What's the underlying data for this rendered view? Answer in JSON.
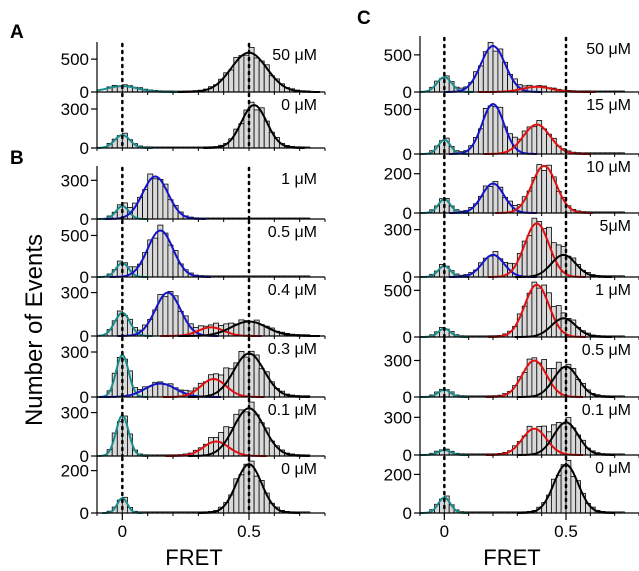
{
  "figure": {
    "y_axis_label": "Number of Events",
    "x_axis_label": "FRET",
    "x_ticks": [
      "0",
      "0.5"
    ],
    "fit_colors": {
      "zero": "#1a8c8c",
      "low": "#1414c8",
      "mid": "#e01010",
      "high": "#000000"
    },
    "bar_fill": "#d9d9d9",
    "dotted_reference_lines": [
      0,
      0.5
    ]
  },
  "chart_data": [
    {
      "type": "bar",
      "panel": "A",
      "xlabel": "",
      "ylabel": "Number of Events",
      "xlim": [
        -0.1,
        0.8
      ],
      "panels": [
        {
          "label": "50 μM",
          "ylim": [
            0,
            700
          ],
          "ticks": [
            0,
            500
          ],
          "peaks": [
            {
              "fit": "zero",
              "c": 0.0,
              "s": 0.06,
              "a": 90
            },
            {
              "fit": "high",
              "c": 0.5,
              "s": 0.07,
              "a": 600
            }
          ]
        },
        {
          "label": "0 μM",
          "ylim": [
            0,
            400
          ],
          "ticks": [
            0,
            300
          ],
          "peaks": [
            {
              "fit": "zero",
              "c": 0.0,
              "s": 0.03,
              "a": 100
            },
            {
              "fit": "high",
              "c": 0.52,
              "s": 0.05,
              "a": 330
            }
          ]
        }
      ]
    },
    {
      "type": "bar",
      "panel": "B",
      "xlabel": "FRET",
      "ylabel": "Number of Events",
      "xlim": [
        -0.1,
        0.8
      ],
      "x_ticks": [
        0,
        0.5
      ],
      "panels": [
        {
          "label": "1 μM",
          "ylim": [
            0,
            380
          ],
          "ticks": [
            0,
            300
          ],
          "peaks": [
            {
              "fit": "zero",
              "c": 0.0,
              "s": 0.025,
              "a": 100
            },
            {
              "fit": "low",
              "c": 0.13,
              "s": 0.05,
              "a": 330
            }
          ]
        },
        {
          "label": "0.5 μM",
          "ylim": [
            0,
            650
          ],
          "ticks": [
            0,
            500
          ],
          "peaks": [
            {
              "fit": "zero",
              "c": 0.0,
              "s": 0.025,
              "a": 170
            },
            {
              "fit": "low",
              "c": 0.15,
              "s": 0.05,
              "a": 560
            }
          ]
        },
        {
          "label": "0.4 μM",
          "ylim": [
            0,
            380
          ],
          "ticks": [
            0,
            300
          ],
          "peaks": [
            {
              "fit": "zero",
              "c": 0.0,
              "s": 0.03,
              "a": 160
            },
            {
              "fit": "low",
              "c": 0.18,
              "s": 0.05,
              "a": 300
            },
            {
              "fit": "mid",
              "c": 0.35,
              "s": 0.05,
              "a": 60
            },
            {
              "fit": "high",
              "c": 0.5,
              "s": 0.07,
              "a": 100
            }
          ]
        },
        {
          "label": "0.3 μM",
          "ylim": [
            0,
            380
          ],
          "ticks": [
            0,
            300
          ],
          "peaks": [
            {
              "fit": "zero",
              "c": 0.0,
              "s": 0.025,
              "a": 280
            },
            {
              "fit": "low",
              "c": 0.15,
              "s": 0.06,
              "a": 90
            },
            {
              "fit": "mid",
              "c": 0.36,
              "s": 0.05,
              "a": 120
            },
            {
              "fit": "high",
              "c": 0.5,
              "s": 0.06,
              "a": 290
            }
          ]
        },
        {
          "label": "0.1 μM",
          "ylim": [
            0,
            380
          ],
          "ticks": [
            0,
            300
          ],
          "peaks": [
            {
              "fit": "zero",
              "c": 0.0,
              "s": 0.025,
              "a": 280
            },
            {
              "fit": "mid",
              "c": 0.37,
              "s": 0.05,
              "a": 100
            },
            {
              "fit": "high",
              "c": 0.5,
              "s": 0.06,
              "a": 330
            }
          ]
        },
        {
          "label": "0 μM",
          "ylim": [
            0,
            250
          ],
          "ticks": [
            0,
            200
          ],
          "peaks": [
            {
              "fit": "zero",
              "c": 0.0,
              "s": 0.02,
              "a": 70
            },
            {
              "fit": "high",
              "c": 0.5,
              "s": 0.05,
              "a": 230
            }
          ]
        }
      ]
    },
    {
      "type": "bar",
      "panel": "C",
      "xlabel": "FRET",
      "ylabel": "",
      "xlim": [
        -0.1,
        0.8
      ],
      "x_ticks": [
        0,
        0.5
      ],
      "panels": [
        {
          "label": "50 μM",
          "ylim": [
            0,
            700
          ],
          "ticks": [
            0,
            500
          ],
          "peaks": [
            {
              "fit": "zero",
              "c": 0.0,
              "s": 0.03,
              "a": 200
            },
            {
              "fit": "low",
              "c": 0.2,
              "s": 0.05,
              "a": 620
            },
            {
              "fit": "mid",
              "c": 0.38,
              "s": 0.06,
              "a": 70
            }
          ]
        },
        {
          "label": "15 μM",
          "ylim": [
            0,
            650
          ],
          "ticks": [
            0,
            500
          ],
          "peaks": [
            {
              "fit": "zero",
              "c": 0.0,
              "s": 0.025,
              "a": 160
            },
            {
              "fit": "low",
              "c": 0.2,
              "s": 0.045,
              "a": 560
            },
            {
              "fit": "mid",
              "c": 0.38,
              "s": 0.055,
              "a": 330
            }
          ]
        },
        {
          "label": "10 μM",
          "ylim": [
            0,
            280
          ],
          "ticks": [
            0,
            200
          ],
          "peaks": [
            {
              "fit": "zero",
              "c": 0.0,
              "s": 0.025,
              "a": 70
            },
            {
              "fit": "low",
              "c": 0.2,
              "s": 0.045,
              "a": 150
            },
            {
              "fit": "mid",
              "c": 0.41,
              "s": 0.05,
              "a": 240
            }
          ]
        },
        {
          "label": "5μM",
          "ylim": [
            0,
            380
          ],
          "ticks": [
            0,
            300
          ],
          "peaks": [
            {
              "fit": "zero",
              "c": 0.0,
              "s": 0.025,
              "a": 70
            },
            {
              "fit": "low",
              "c": 0.2,
              "s": 0.045,
              "a": 140
            },
            {
              "fit": "mid",
              "c": 0.38,
              "s": 0.05,
              "a": 340
            },
            {
              "fit": "high",
              "c": 0.49,
              "s": 0.05,
              "a": 140
            }
          ]
        },
        {
          "label": "1 μM",
          "ylim": [
            0,
            600
          ],
          "ticks": [
            0,
            500
          ],
          "peaks": [
            {
              "fit": "zero",
              "c": 0.0,
              "s": 0.025,
              "a": 90
            },
            {
              "fit": "mid",
              "c": 0.38,
              "s": 0.05,
              "a": 560
            },
            {
              "fit": "high",
              "c": 0.49,
              "s": 0.05,
              "a": 200
            }
          ]
        },
        {
          "label": "0.5 μM",
          "ylim": [
            0,
            460
          ],
          "ticks": [
            0,
            300
          ],
          "peaks": [
            {
              "fit": "zero",
              "c": 0.0,
              "s": 0.025,
              "a": 60
            },
            {
              "fit": "mid",
              "c": 0.37,
              "s": 0.05,
              "a": 300
            },
            {
              "fit": "high",
              "c": 0.5,
              "s": 0.05,
              "a": 250
            }
          ]
        },
        {
          "label": "0.1 μM",
          "ylim": [
            0,
            430
          ],
          "ticks": [
            0,
            300
          ],
          "peaks": [
            {
              "fit": "zero",
              "c": 0.0,
              "s": 0.025,
              "a": 40
            },
            {
              "fit": "mid",
              "c": 0.37,
              "s": 0.05,
              "a": 210
            },
            {
              "fit": "high",
              "c": 0.5,
              "s": 0.05,
              "a": 260
            }
          ]
        },
        {
          "label": "0 μM",
          "ylim": [
            0,
            280
          ],
          "ticks": [
            0,
            200
          ],
          "peaks": [
            {
              "fit": "zero",
              "c": 0.0,
              "s": 0.025,
              "a": 80
            },
            {
              "fit": "high",
              "c": 0.5,
              "s": 0.05,
              "a": 250
            }
          ]
        }
      ]
    }
  ]
}
